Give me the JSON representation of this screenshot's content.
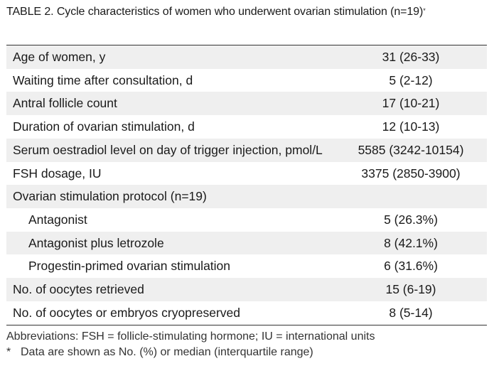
{
  "caption": {
    "title": "TABLE 2. Cycle characteristics of women who underwent ovarian stimulation (n=19)",
    "marker": "*"
  },
  "table": {
    "rows": [
      {
        "label": "Age of women, y",
        "value": "31 (26-33)"
      },
      {
        "label": "Waiting time after consultation, d",
        "value": "5 (2-12)"
      },
      {
        "label": "Antral follicle count",
        "value": "17 (10-21)"
      },
      {
        "label": "Duration of ovarian stimulation, d",
        "value": "12 (10-13)"
      },
      {
        "label": "Serum oestradiol level on day of trigger injection, pmol/L",
        "value": "5585 (3242-10154)"
      },
      {
        "label": "FSH dosage, IU",
        "value": "3375 (2850-3900)"
      },
      {
        "label": "Ovarian stimulation protocol (n=19)",
        "value": ""
      },
      {
        "label": "Antagonist",
        "value": "5 (26.3%)"
      },
      {
        "label": "Antagonist plus letrozole",
        "value": "8 (42.1%)"
      },
      {
        "label": "Progestin-primed ovarian stimulation",
        "value": "6 (31.6%)"
      },
      {
        "label": "No. of oocytes retrieved",
        "value": "15 (6-19)"
      },
      {
        "label": "No. of oocytes or embryos cryopreserved",
        "value": "8 (5-14)"
      }
    ]
  },
  "footnotes": {
    "abbreviations": "Abbreviations: FSH = follicle-stimulating hormone; IU = international units",
    "marker": "*",
    "note": "Data are shown as No. (%) or median (interquartile range)"
  }
}
